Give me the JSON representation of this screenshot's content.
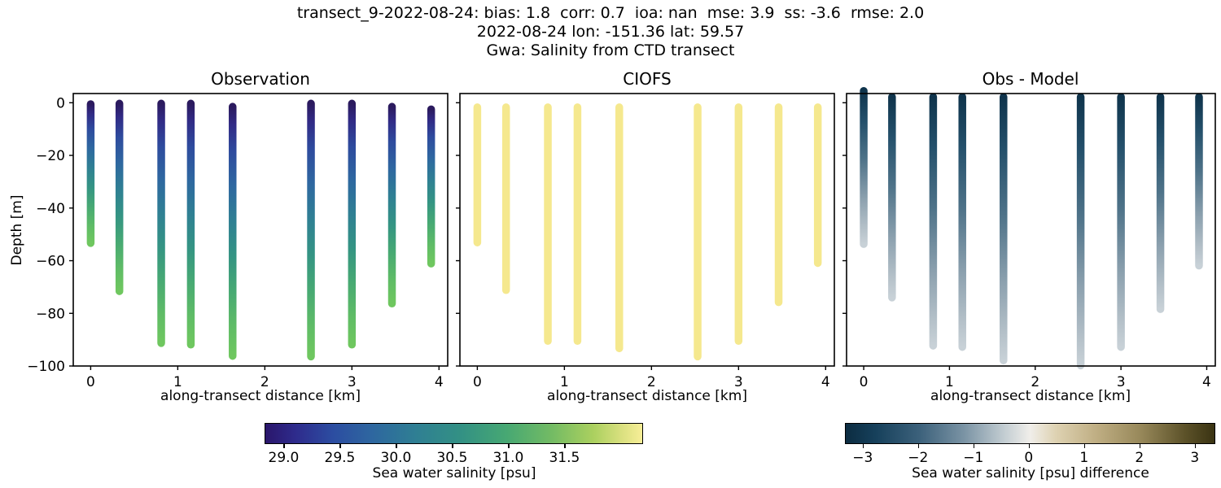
{
  "figure_titles": {
    "line1": "transect_9-2022-08-24: bias: 1.8  corr: 0.7  ioa: nan  mse: 3.9  ss: -3.6  rmse: 2.0",
    "line2": "2022-08-24 lon: -151.36 lat: 59.57",
    "line3": "Gwa: Salinity from CTD transect"
  },
  "chart_data": {
    "type": "scatter",
    "xlabel": "along-transect distance [km]",
    "ylabel": "Depth [m]",
    "xlim": [
      -0.2,
      4.1
    ],
    "ylim": [
      -100,
      3.5
    ],
    "xticks": {
      "values": [
        0,
        1,
        2,
        3,
        4
      ],
      "labels": [
        "0",
        "1",
        "2",
        "3",
        "4"
      ]
    },
    "yticks": {
      "values": [
        0,
        -20,
        -40,
        -60,
        -80,
        -100
      ],
      "labels": [
        "0",
        "−20",
        "−40",
        "−60",
        "−80",
        "−100"
      ]
    },
    "panels": [
      {
        "title": "Observation",
        "style": "obs",
        "show_y_tick_labels": true,
        "profiles": [
          {
            "x": 0.0,
            "top": -0.5,
            "bottom": -53.3
          },
          {
            "x": 0.33,
            "top": -0.3,
            "bottom": -71.6
          },
          {
            "x": 0.81,
            "top": -0.3,
            "bottom": -91.3
          },
          {
            "x": 1.15,
            "top": -0.3,
            "bottom": -91.9
          },
          {
            "x": 1.63,
            "top": -1.5,
            "bottom": -96.2
          },
          {
            "x": 2.53,
            "top": -0.3,
            "bottom": -96.4
          },
          {
            "x": 3.0,
            "top": -0.3,
            "bottom": -91.9
          },
          {
            "x": 3.46,
            "top": -1.5,
            "bottom": -76.3
          },
          {
            "x": 3.91,
            "top": -2.5,
            "bottom": -61.1
          }
        ]
      },
      {
        "title": "CIOFS",
        "style": "model",
        "show_y_tick_labels": false,
        "profiles": [
          {
            "x": 0.0,
            "top": -1.7,
            "bottom": -53.1
          },
          {
            "x": 0.33,
            "top": -1.7,
            "bottom": -71.2
          },
          {
            "x": 0.81,
            "top": -1.7,
            "bottom": -90.5
          },
          {
            "x": 1.15,
            "top": -1.7,
            "bottom": -90.5
          },
          {
            "x": 1.63,
            "top": -1.7,
            "bottom": -93.3
          },
          {
            "x": 2.53,
            "top": -1.7,
            "bottom": -96.4
          },
          {
            "x": 3.0,
            "top": -1.7,
            "bottom": -90.5
          },
          {
            "x": 3.46,
            "top": -1.7,
            "bottom": -75.8
          },
          {
            "x": 3.91,
            "top": -1.7,
            "bottom": -60.9
          }
        ]
      },
      {
        "title": "Obs - Model",
        "style": "diff",
        "show_y_tick_labels": false,
        "profiles": [
          {
            "x": 0.0,
            "top": 4.5,
            "bottom": -53.7
          },
          {
            "x": 0.33,
            "top": 2.2,
            "bottom": -74.0
          },
          {
            "x": 0.81,
            "top": 2.2,
            "bottom": -92.3
          },
          {
            "x": 1.15,
            "top": 2.2,
            "bottom": -92.8
          },
          {
            "x": 1.63,
            "top": 2.2,
            "bottom": -97.9
          },
          {
            "x": 2.53,
            "top": 2.2,
            "bottom": -99.8
          },
          {
            "x": 3.0,
            "top": 2.2,
            "bottom": -92.8
          },
          {
            "x": 3.46,
            "top": 2.2,
            "bottom": -78.4
          },
          {
            "x": 3.91,
            "top": 2.2,
            "bottom": -61.9
          }
        ]
      }
    ],
    "colormaps": {
      "obs": {
        "stops": [
          [
            0.0,
            "#2b1a5e"
          ],
          [
            0.07,
            "#312a85"
          ],
          [
            0.18,
            "#2e4b9e"
          ],
          [
            0.32,
            "#2e68a0"
          ],
          [
            0.46,
            "#2f8093"
          ],
          [
            0.6,
            "#349483"
          ],
          [
            0.74,
            "#47a973"
          ],
          [
            0.88,
            "#5fbc66"
          ],
          [
            1.0,
            "#6fc75f"
          ]
        ]
      },
      "model_solid": "#f5e88e",
      "diff": {
        "stops": [
          [
            0.0,
            "#0f344c"
          ],
          [
            0.2,
            "#24506b"
          ],
          [
            0.45,
            "#4f7389"
          ],
          [
            0.7,
            "#8ba0ae"
          ],
          [
            0.9,
            "#b5c1c9"
          ],
          [
            1.0,
            "#c8d1d7"
          ]
        ]
      }
    },
    "colorbars": [
      {
        "label": "Sea water salinity [psu]",
        "vmin": 28.83,
        "vmax": 32.2,
        "tick_values": [
          29.0,
          29.5,
          30.0,
          30.5,
          31.0,
          31.5
        ],
        "tick_labels": [
          "29.0",
          "29.5",
          "30.0",
          "30.5",
          "31.0",
          "31.5"
        ],
        "gradient": [
          [
            0.0,
            "#2a166b"
          ],
          [
            0.08,
            "#2e2b8c"
          ],
          [
            0.18,
            "#2c4da1"
          ],
          [
            0.28,
            "#2e66a0"
          ],
          [
            0.4,
            "#2f7f93"
          ],
          [
            0.52,
            "#339184"
          ],
          [
            0.64,
            "#47a873"
          ],
          [
            0.76,
            "#73bb64"
          ],
          [
            0.87,
            "#abd05f"
          ],
          [
            0.95,
            "#dce181"
          ],
          [
            1.0,
            "#f7ee97"
          ]
        ]
      },
      {
        "label": "Sea water salinity [psu] difference",
        "vmin": -3.32,
        "vmax": 3.37,
        "tick_values": [
          -3,
          -2,
          -1,
          0,
          1,
          2,
          3
        ],
        "tick_labels": [
          "−3",
          "−2",
          "−1",
          "0",
          "1",
          "2",
          "3"
        ],
        "gradient": [
          [
            0.0,
            "#0c2c41"
          ],
          [
            0.08,
            "#16405b"
          ],
          [
            0.2,
            "#3c617b"
          ],
          [
            0.32,
            "#7a93a4"
          ],
          [
            0.43,
            "#c3cdd2"
          ],
          [
            0.5,
            "#f0eeea"
          ],
          [
            0.57,
            "#ded2b2"
          ],
          [
            0.68,
            "#bfae83"
          ],
          [
            0.8,
            "#97885a"
          ],
          [
            0.92,
            "#5c5229"
          ],
          [
            1.0,
            "#3a3312"
          ]
        ]
      }
    ]
  }
}
